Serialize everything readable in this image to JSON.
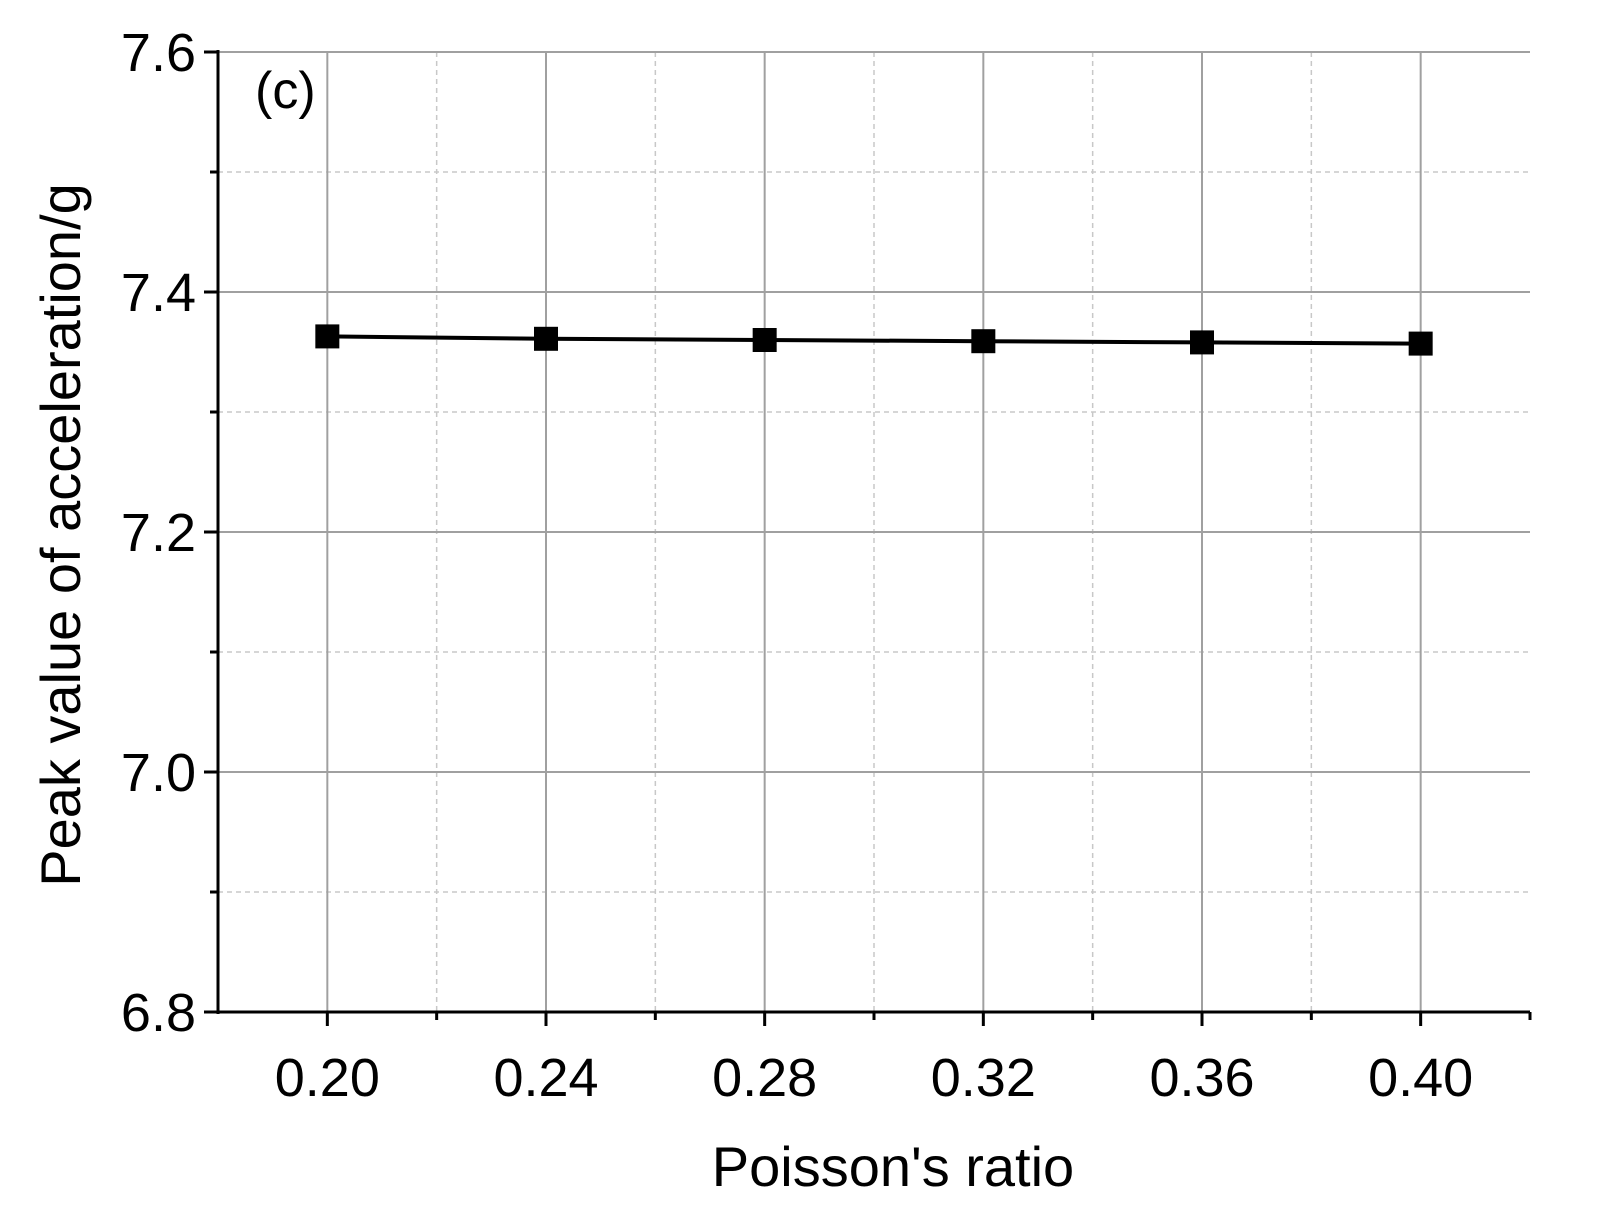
{
  "chart_data": {
    "type": "line",
    "panel_label": "(c)",
    "xlabel": "Poisson's ratio",
    "ylabel": "Peak value of acceleration/g",
    "xlim": [
      0.18,
      0.42
    ],
    "ylim": [
      6.8,
      7.6
    ],
    "x_ticks": [
      "0.20",
      "0.24",
      "0.28",
      "0.32",
      "0.36",
      "0.40"
    ],
    "y_ticks": [
      "6.8",
      "7.0",
      "7.2",
      "7.4",
      "7.6"
    ],
    "grid": true,
    "series": [
      {
        "marker": "square",
        "color": "#000000",
        "x": [
          0.2,
          0.24,
          0.28,
          0.32,
          0.36,
          0.4
        ],
        "y": [
          7.363,
          7.361,
          7.36,
          7.359,
          7.358,
          7.357
        ]
      }
    ]
  }
}
